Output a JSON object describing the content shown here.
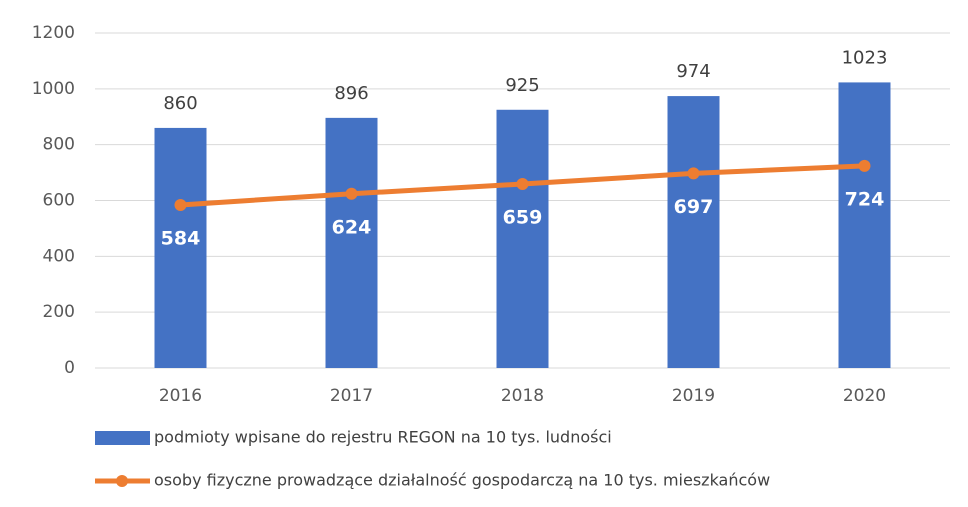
{
  "chart_data": {
    "type": "combo",
    "categories": [
      "2016",
      "2017",
      "2018",
      "2019",
      "2020"
    ],
    "series": [
      {
        "name": "podmioty wpisane do rejestru REGON na 10 tys. ludności",
        "type": "bar",
        "color": "#4472c4",
        "values": [
          860,
          896,
          925,
          974,
          1023
        ]
      },
      {
        "name": "osoby fizyczne prowadzące działalność gospodarczą na 10 tys. mieszkańców",
        "type": "line",
        "color": "#ed7d31",
        "values": [
          584,
          624,
          659,
          697,
          724
        ]
      }
    ],
    "ylim": [
      0,
      1200
    ],
    "yticks": [
      0,
      200,
      400,
      600,
      800,
      1000,
      1200
    ],
    "grid": true,
    "legend": "bottom"
  }
}
